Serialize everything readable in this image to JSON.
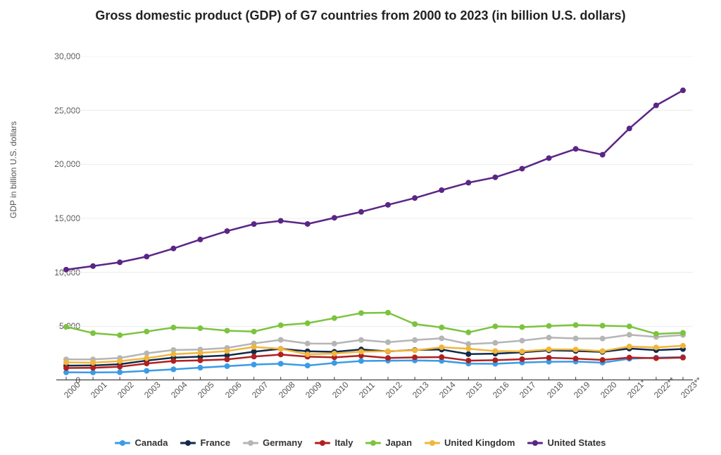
{
  "title": "Gross domestic product (GDP) of G7 countries from 2000 to 2023 (in billion U.S. dollars)",
  "y_axis_label": "GDP in billion U.S. dollars",
  "chart": {
    "type": "line",
    "background_color": "#ffffff",
    "grid_color": "#ececec",
    "axis_color": "#444444",
    "title_fontsize": 18,
    "title_fontweight": "700",
    "label_fontsize": 12,
    "tick_fontsize": 12,
    "xlim": [
      0,
      23
    ],
    "ylim": [
      0,
      30000
    ],
    "ytick_step": 5000,
    "x_labels": [
      "2000",
      "2001",
      "2002",
      "2003",
      "2004",
      "2005",
      "2006",
      "2007",
      "2008",
      "2009",
      "2010",
      "2011",
      "2012",
      "2013",
      "2014",
      "2015",
      "2016",
      "2017",
      "2018",
      "2019",
      "2020",
      "2021*",
      "2022**",
      "2023**"
    ],
    "y_ticks": [
      0,
      5000,
      10000,
      15000,
      20000,
      25000,
      30000
    ],
    "y_tick_labels": [
      "0",
      "5,000",
      "10,000",
      "15,000",
      "20,000",
      "25,000",
      "30,000"
    ],
    "line_width": 2.5,
    "marker_radius": 4,
    "marker_style": "circle",
    "series": [
      {
        "name": "Canada",
        "color": "#3a9be6",
        "values": [
          740,
          730,
          750,
          880,
          1020,
          1170,
          1310,
          1460,
          1540,
          1370,
          1610,
          1790,
          1820,
          1840,
          1800,
          1550,
          1530,
          1650,
          1720,
          1740,
          1640,
          2000,
          2100,
          2150
        ]
      },
      {
        "name": "France",
        "color": "#102a4a",
        "values": [
          1360,
          1380,
          1490,
          1830,
          2100,
          2190,
          2310,
          2650,
          2920,
          2690,
          2640,
          2860,
          2680,
          2810,
          2850,
          2430,
          2470,
          2590,
          2780,
          2720,
          2630,
          2940,
          2800,
          2900
        ]
      },
      {
        "name": "Germany",
        "color": "#b5b5b5",
        "values": [
          1940,
          1940,
          2070,
          2500,
          2810,
          2850,
          3000,
          3420,
          3750,
          3410,
          3400,
          3740,
          3530,
          3730,
          3890,
          3360,
          3470,
          3680,
          3960,
          3880,
          3870,
          4220,
          4020,
          4200
        ]
      },
      {
        "name": "Italy",
        "color": "#b02020",
        "values": [
          1140,
          1160,
          1260,
          1560,
          1790,
          1850,
          1940,
          2200,
          2390,
          2190,
          2130,
          2280,
          2070,
          2130,
          2150,
          1830,
          1870,
          1960,
          2090,
          2010,
          1890,
          2110,
          2050,
          2100
        ]
      },
      {
        "name": "Japan",
        "color": "#7cc33e",
        "values": [
          4960,
          4370,
          4180,
          4520,
          4890,
          4830,
          4600,
          4520,
          5100,
          5290,
          5760,
          6230,
          6270,
          5210,
          4900,
          4440,
          5000,
          4930,
          5040,
          5120,
          5060,
          5000,
          4300,
          4400
        ]
      },
      {
        "name": "United Kingdom",
        "color": "#f1b53a",
        "values": [
          1660,
          1640,
          1780,
          2050,
          2420,
          2540,
          2710,
          3090,
          2920,
          2410,
          2480,
          2660,
          2700,
          2780,
          3060,
          2930,
          2710,
          2680,
          2870,
          2850,
          2710,
          3130,
          3050,
          3200
        ]
      },
      {
        "name": "United States",
        "color": "#5b2586",
        "values": [
          10250,
          10580,
          10930,
          11460,
          12210,
          13040,
          13820,
          14470,
          14770,
          14480,
          15050,
          15600,
          16250,
          16880,
          17610,
          18300,
          18800,
          19600,
          20580,
          21430,
          20890,
          23320,
          25460,
          26850
        ]
      }
    ]
  },
  "legend": {
    "fontsize": 13,
    "fontweight": "700"
  }
}
